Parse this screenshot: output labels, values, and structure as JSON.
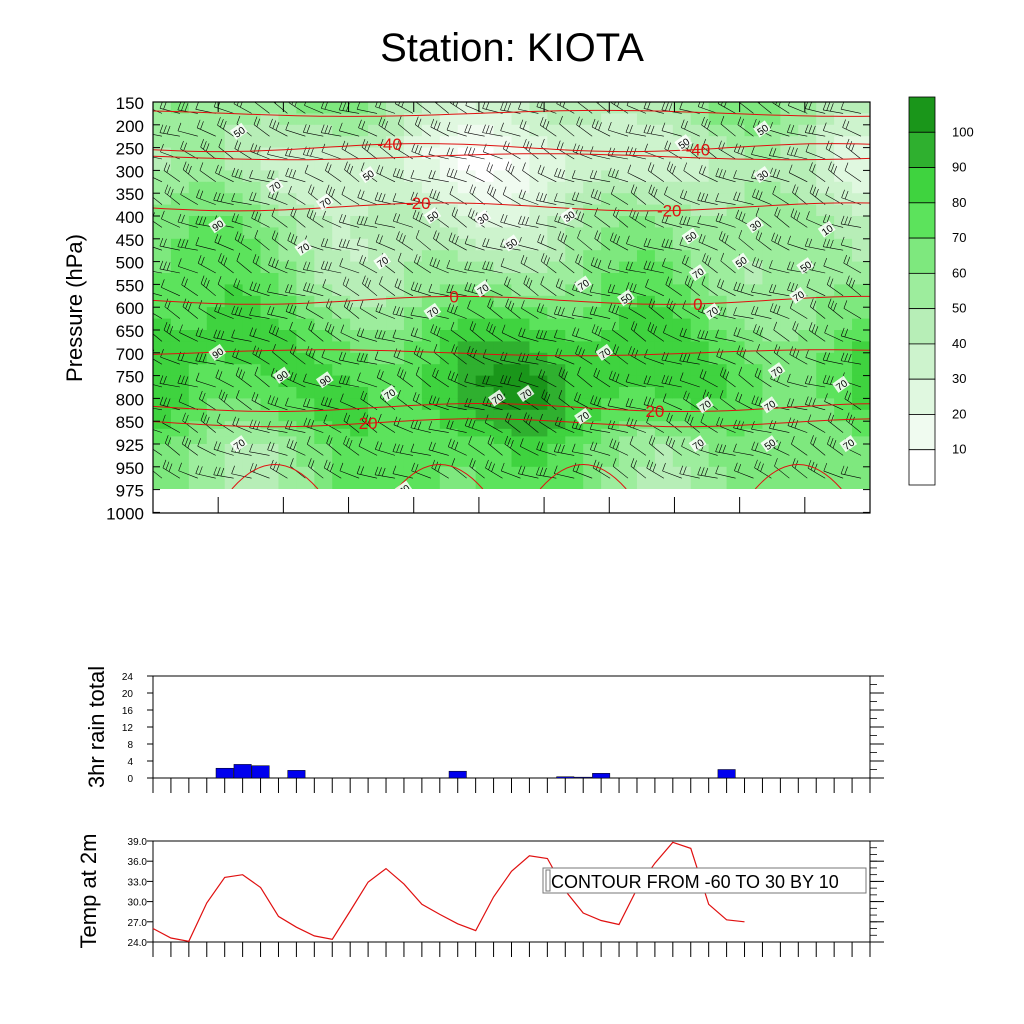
{
  "title": "Station: KIOTA",
  "colors": {
    "temp_contour": "#e01010",
    "wind_barb": "#000000",
    "rain_bar": "#0000ee",
    "temp_line": "#e01010",
    "rh_scale": [
      "#ffffff",
      "#f0fbf0",
      "#e0f8e0",
      "#cdf3cd",
      "#b7eeb7",
      "#9ded9d",
      "#7ee87e",
      "#5ce35c",
      "#3fd33f",
      "#2fb02f",
      "#1a961a"
    ]
  },
  "chart_data": [
    {
      "type": "heatmap",
      "subtype": "time-height cross section (relative humidity with temperature contours and wind barbs)",
      "ylabel": "Pressure (hPa)",
      "y_ticks": [
        150,
        200,
        250,
        300,
        350,
        400,
        450,
        500,
        550,
        600,
        650,
        700,
        750,
        800,
        850,
        925,
        950,
        975,
        1000
      ],
      "y_tick_labels": [
        "150",
        "200",
        "250",
        "300",
        "350",
        "400",
        "450",
        "500",
        "550",
        "600",
        "650",
        "700",
        "750",
        "800",
        "850",
        "925",
        "950",
        "975",
        "1000"
      ],
      "x_tick_count": 11,
      "colorbar": {
        "labels": [
          "100",
          "90",
          "80",
          "70",
          "60",
          "50",
          "40",
          "30",
          "20",
          "10"
        ],
        "levels": [
          10,
          20,
          30,
          40,
          50,
          60,
          70,
          80,
          90,
          100
        ]
      },
      "temperature_contours": [
        {
          "label": "-40",
          "level": -40,
          "pressure": 250
        },
        {
          "label": "-40",
          "level": -40,
          "pressure": 250
        },
        {
          "label": "-20",
          "level": -20,
          "pressure": 380
        },
        {
          "label": "-20",
          "level": -20,
          "pressure": 380
        },
        {
          "label": "0",
          "level": 0,
          "pressure": 585
        },
        {
          "label": "0",
          "level": 0,
          "pressure": 585
        },
        {
          "label": "20",
          "level": 20,
          "pressure": 820
        },
        {
          "label": "20",
          "level": 20,
          "pressure": 855
        }
      ],
      "rh_labels": [
        {
          "v": "50",
          "p": 215,
          "t": 0.12
        },
        {
          "v": "50",
          "p": 310,
          "t": 0.3
        },
        {
          "v": "70",
          "p": 335,
          "t": 0.17
        },
        {
          "v": "70",
          "p": 370,
          "t": 0.24
        },
        {
          "v": "90",
          "p": 420,
          "t": 0.09
        },
        {
          "v": "70",
          "p": 470,
          "t": 0.21
        },
        {
          "v": "70",
          "p": 500,
          "t": 0.32
        },
        {
          "v": "50",
          "p": 400,
          "t": 0.39
        },
        {
          "v": "30",
          "p": 405,
          "t": 0.46
        },
        {
          "v": "50",
          "p": 460,
          "t": 0.5
        },
        {
          "v": "30",
          "p": 400,
          "t": 0.58
        },
        {
          "v": "70",
          "p": 610,
          "t": 0.39
        },
        {
          "v": "70",
          "p": 560,
          "t": 0.46
        },
        {
          "v": "70",
          "p": 550,
          "t": 0.6
        },
        {
          "v": "50",
          "p": 580,
          "t": 0.66
        },
        {
          "v": "50",
          "p": 210,
          "t": 0.85
        },
        {
          "v": "50",
          "p": 240,
          "t": 0.74
        },
        {
          "v": "30",
          "p": 310,
          "t": 0.85
        },
        {
          "v": "30",
          "p": 420,
          "t": 0.84
        },
        {
          "v": "50",
          "p": 445,
          "t": 0.75
        },
        {
          "v": "10",
          "p": 430,
          "t": 0.94
        },
        {
          "v": "50",
          "p": 500,
          "t": 0.82
        },
        {
          "v": "50",
          "p": 510,
          "t": 0.91
        },
        {
          "v": "70",
          "p": 525,
          "t": 0.76
        },
        {
          "v": "70",
          "p": 575,
          "t": 0.9
        },
        {
          "v": "70",
          "p": 610,
          "t": 0.78
        },
        {
          "v": "90",
          "p": 700,
          "t": 0.09
        },
        {
          "v": "90",
          "p": 750,
          "t": 0.18
        },
        {
          "v": "90",
          "p": 760,
          "t": 0.24
        },
        {
          "v": "70",
          "p": 790,
          "t": 0.33
        },
        {
          "v": "70",
          "p": 790,
          "t": 0.52
        },
        {
          "v": "70",
          "p": 800,
          "t": 0.48
        },
        {
          "v": "70",
          "p": 700,
          "t": 0.63
        },
        {
          "v": "70",
          "p": 740,
          "t": 0.87
        },
        {
          "v": "70",
          "p": 770,
          "t": 0.96
        },
        {
          "v": "70",
          "p": 840,
          "t": 0.6
        },
        {
          "v": "70",
          "p": 815,
          "t": 0.77
        },
        {
          "v": "70",
          "p": 815,
          "t": 0.86
        },
        {
          "v": "70",
          "p": 925,
          "t": 0.12
        },
        {
          "v": "70",
          "p": 975,
          "t": 0.35
        },
        {
          "v": "70",
          "p": 925,
          "t": 0.76
        },
        {
          "v": "50",
          "p": 925,
          "t": 0.86
        },
        {
          "v": "70",
          "p": 925,
          "t": 0.97
        }
      ]
    },
    {
      "type": "bar",
      "ylabel": "3hr rain total",
      "ylim": [
        0,
        24
      ],
      "y_ticks": [
        0,
        4,
        8,
        12,
        16,
        20,
        24
      ],
      "y_tick_labels": [
        "0",
        "4",
        "8",
        "12",
        "16",
        "20",
        "24"
      ],
      "x_count": 40,
      "x_index": [
        0,
        1,
        2,
        3,
        4,
        5,
        6,
        7,
        8,
        9,
        10,
        11,
        12,
        13,
        14,
        15,
        16,
        17,
        18,
        19,
        20,
        21,
        22,
        23,
        24,
        25,
        26,
        27,
        28,
        29,
        30,
        31,
        32,
        33,
        34,
        35,
        36,
        37,
        38,
        39
      ],
      "values": [
        0,
        0,
        0,
        0,
        2.3,
        3.2,
        2.9,
        0,
        1.8,
        0,
        0,
        0,
        0,
        0,
        0,
        0,
        0,
        1.6,
        0,
        0,
        0,
        0,
        0,
        0.3,
        0.2,
        1.1,
        0,
        0,
        0,
        0,
        0,
        0,
        2.0,
        0,
        0,
        0,
        0,
        0,
        0,
        0
      ]
    },
    {
      "type": "line",
      "ylabel": "Temp at 2m",
      "ylim": [
        24.0,
        39.0
      ],
      "y_ticks": [
        24.0,
        27.0,
        30.0,
        33.0,
        36.0,
        39.0
      ],
      "y_tick_labels": [
        "24.0",
        "27.0",
        "30.0",
        "33.0",
        "36.0",
        "39.0"
      ],
      "x_count": 40,
      "x_index": [
        0,
        1,
        2,
        3,
        4,
        5,
        6,
        7,
        8,
        9,
        10,
        11,
        12,
        13,
        14,
        15,
        16,
        17,
        18,
        19,
        20,
        21,
        22,
        23,
        24,
        25,
        26,
        27,
        28,
        29,
        30,
        31,
        32,
        33
      ],
      "values": [
        26.0,
        24.6,
        24.1,
        29.8,
        33.6,
        34.0,
        32.1,
        27.8,
        26.2,
        24.9,
        24.4,
        28.6,
        32.9,
        34.9,
        32.6,
        29.6,
        28.1,
        26.7,
        25.7,
        30.7,
        34.5,
        36.8,
        36.4,
        31.6,
        28.3,
        27.2,
        26.6,
        31.9,
        35.7,
        38.8,
        37.9,
        29.6,
        27.3,
        27.0
      ],
      "annotation": "CONTOUR FROM -60 TO 30 BY 10"
    }
  ]
}
